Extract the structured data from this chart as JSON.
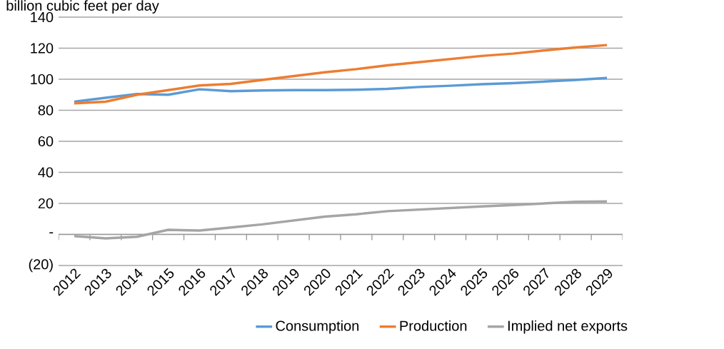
{
  "chart_data": {
    "type": "line",
    "ylabel": "billion cubic feet per day",
    "categories": [
      "2012",
      "2013",
      "2014",
      "2015",
      "2016",
      "2017",
      "2018",
      "2019",
      "2020",
      "2021",
      "2022",
      "2023",
      "2024",
      "2025",
      "2026",
      "2027",
      "2028",
      "2029"
    ],
    "series": [
      {
        "name": "Consumption",
        "color": "#5b9bd5",
        "values": [
          85.5,
          88,
          90.5,
          90,
          93.5,
          92.3,
          92.8,
          93,
          93,
          93.2,
          93.8,
          95,
          95.8,
          96.8,
          97.5,
          98.5,
          99.5,
          100.8
        ]
      },
      {
        "name": "Production",
        "color": "#ed7d31",
        "values": [
          84.5,
          85.5,
          90,
          93,
          96,
          97,
          99.5,
          102,
          104.5,
          106.5,
          109,
          111,
          113,
          115,
          116.5,
          118.5,
          120.5,
          122
        ]
      },
      {
        "name": "Implied net exports",
        "color": "#a5a5a5",
        "values": [
          -1,
          -2.5,
          -1.5,
          3,
          2.5,
          4.5,
          6.5,
          9,
          11.5,
          13,
          15,
          16,
          17,
          18,
          19,
          20,
          21,
          21.3
        ]
      }
    ],
    "ylim": [
      -20,
      140
    ],
    "yticks": [
      {
        "value": -20,
        "label": "(20)"
      },
      {
        "value": 0,
        "label": "-"
      },
      20,
      40,
      60,
      80,
      100,
      120,
      140
    ],
    "grid": "y",
    "legend": "bottom",
    "marker": "none",
    "line_style": "solid"
  }
}
